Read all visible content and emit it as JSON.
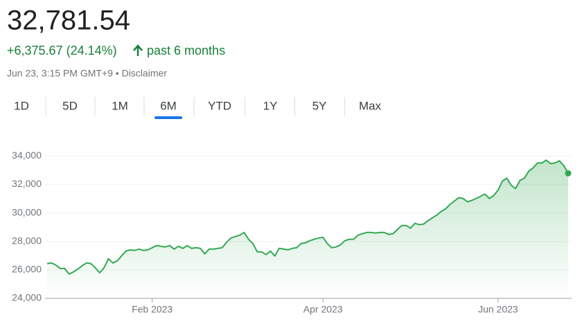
{
  "header": {
    "price": "32,781.54",
    "change": "+6,375.67 (24.14%)",
    "period": "past 6 months",
    "timestamp": "Jun 23, 3:15 PM GMT+9 • Disclaimer"
  },
  "tabs": {
    "items": [
      "1D",
      "5D",
      "1M",
      "6M",
      "YTD",
      "1Y",
      "5Y",
      "Max"
    ],
    "selected": 3
  },
  "chart_data": {
    "type": "line",
    "color": "#34a853",
    "grid": true,
    "categories": [
      null,
      null,
      null,
      null,
      null,
      null,
      null,
      null,
      null,
      null,
      null,
      null,
      null,
      null,
      null,
      null,
      null,
      null,
      null,
      null,
      null,
      null,
      null,
      null,
      "Feb 2023",
      null,
      null,
      null,
      null,
      null,
      null,
      null,
      null,
      null,
      null,
      null,
      null,
      null,
      null,
      null,
      null,
      null,
      null,
      null,
      null,
      null,
      null,
      null,
      null,
      null,
      null,
      null,
      null,
      null,
      null,
      null,
      null,
      null,
      null,
      null,
      null,
      null,
      null,
      "Apr 2023",
      null,
      null,
      null,
      null,
      null,
      null,
      null,
      null,
      null,
      null,
      null,
      null,
      null,
      null,
      null,
      null,
      null,
      null,
      null,
      null,
      null,
      null,
      null,
      null,
      null,
      null,
      null,
      null,
      null,
      null,
      null,
      null,
      null,
      null,
      null,
      null,
      null,
      null,
      null,
      "Jun 2023",
      null,
      null,
      null,
      null,
      null,
      null,
      null,
      null,
      null,
      null,
      null,
      null,
      null,
      null,
      null,
      null
    ],
    "values": [
      26440,
      26490,
      26340,
      26100,
      26100,
      25710,
      25850,
      26050,
      26290,
      26490,
      26440,
      26150,
      25800,
      26150,
      26780,
      26490,
      26630,
      26980,
      27320,
      27410,
      27370,
      27460,
      27370,
      27410,
      27560,
      27710,
      27660,
      27610,
      27710,
      27460,
      27660,
      27510,
      27710,
      27510,
      27560,
      27510,
      27120,
      27460,
      27460,
      27510,
      27560,
      27950,
      28240,
      28340,
      28440,
      28630,
      28150,
      27850,
      27270,
      27270,
      27070,
      27320,
      26980,
      27510,
      27460,
      27410,
      27510,
      27560,
      27850,
      27900,
      28050,
      28150,
      28240,
      28290,
      27850,
      27560,
      27610,
      27760,
      28050,
      28150,
      28150,
      28440,
      28540,
      28630,
      28630,
      28590,
      28630,
      28630,
      28490,
      28540,
      28830,
      29120,
      29120,
      28930,
      29270,
      29170,
      29220,
      29460,
      29660,
      29850,
      30100,
      30290,
      30590,
      30830,
      31070,
      31020,
      30780,
      30880,
      31020,
      31170,
      31320,
      31020,
      31220,
      31610,
      32240,
      32440,
      31950,
      31710,
      32290,
      32440,
      32930,
      33170,
      33510,
      33510,
      33710,
      33460,
      33510,
      33660,
      33320,
      32781.54
    ],
    "ylim": [
      24000,
      34500
    ],
    "yticks": [
      {
        "value": 24000,
        "label": "24,000"
      },
      {
        "value": 26000,
        "label": "26,000"
      },
      {
        "value": 28000,
        "label": "28,000"
      },
      {
        "value": 30000,
        "label": "30,000"
      },
      {
        "value": 32000,
        "label": "32,000"
      },
      {
        "value": 34000,
        "label": "34,000"
      }
    ]
  }
}
